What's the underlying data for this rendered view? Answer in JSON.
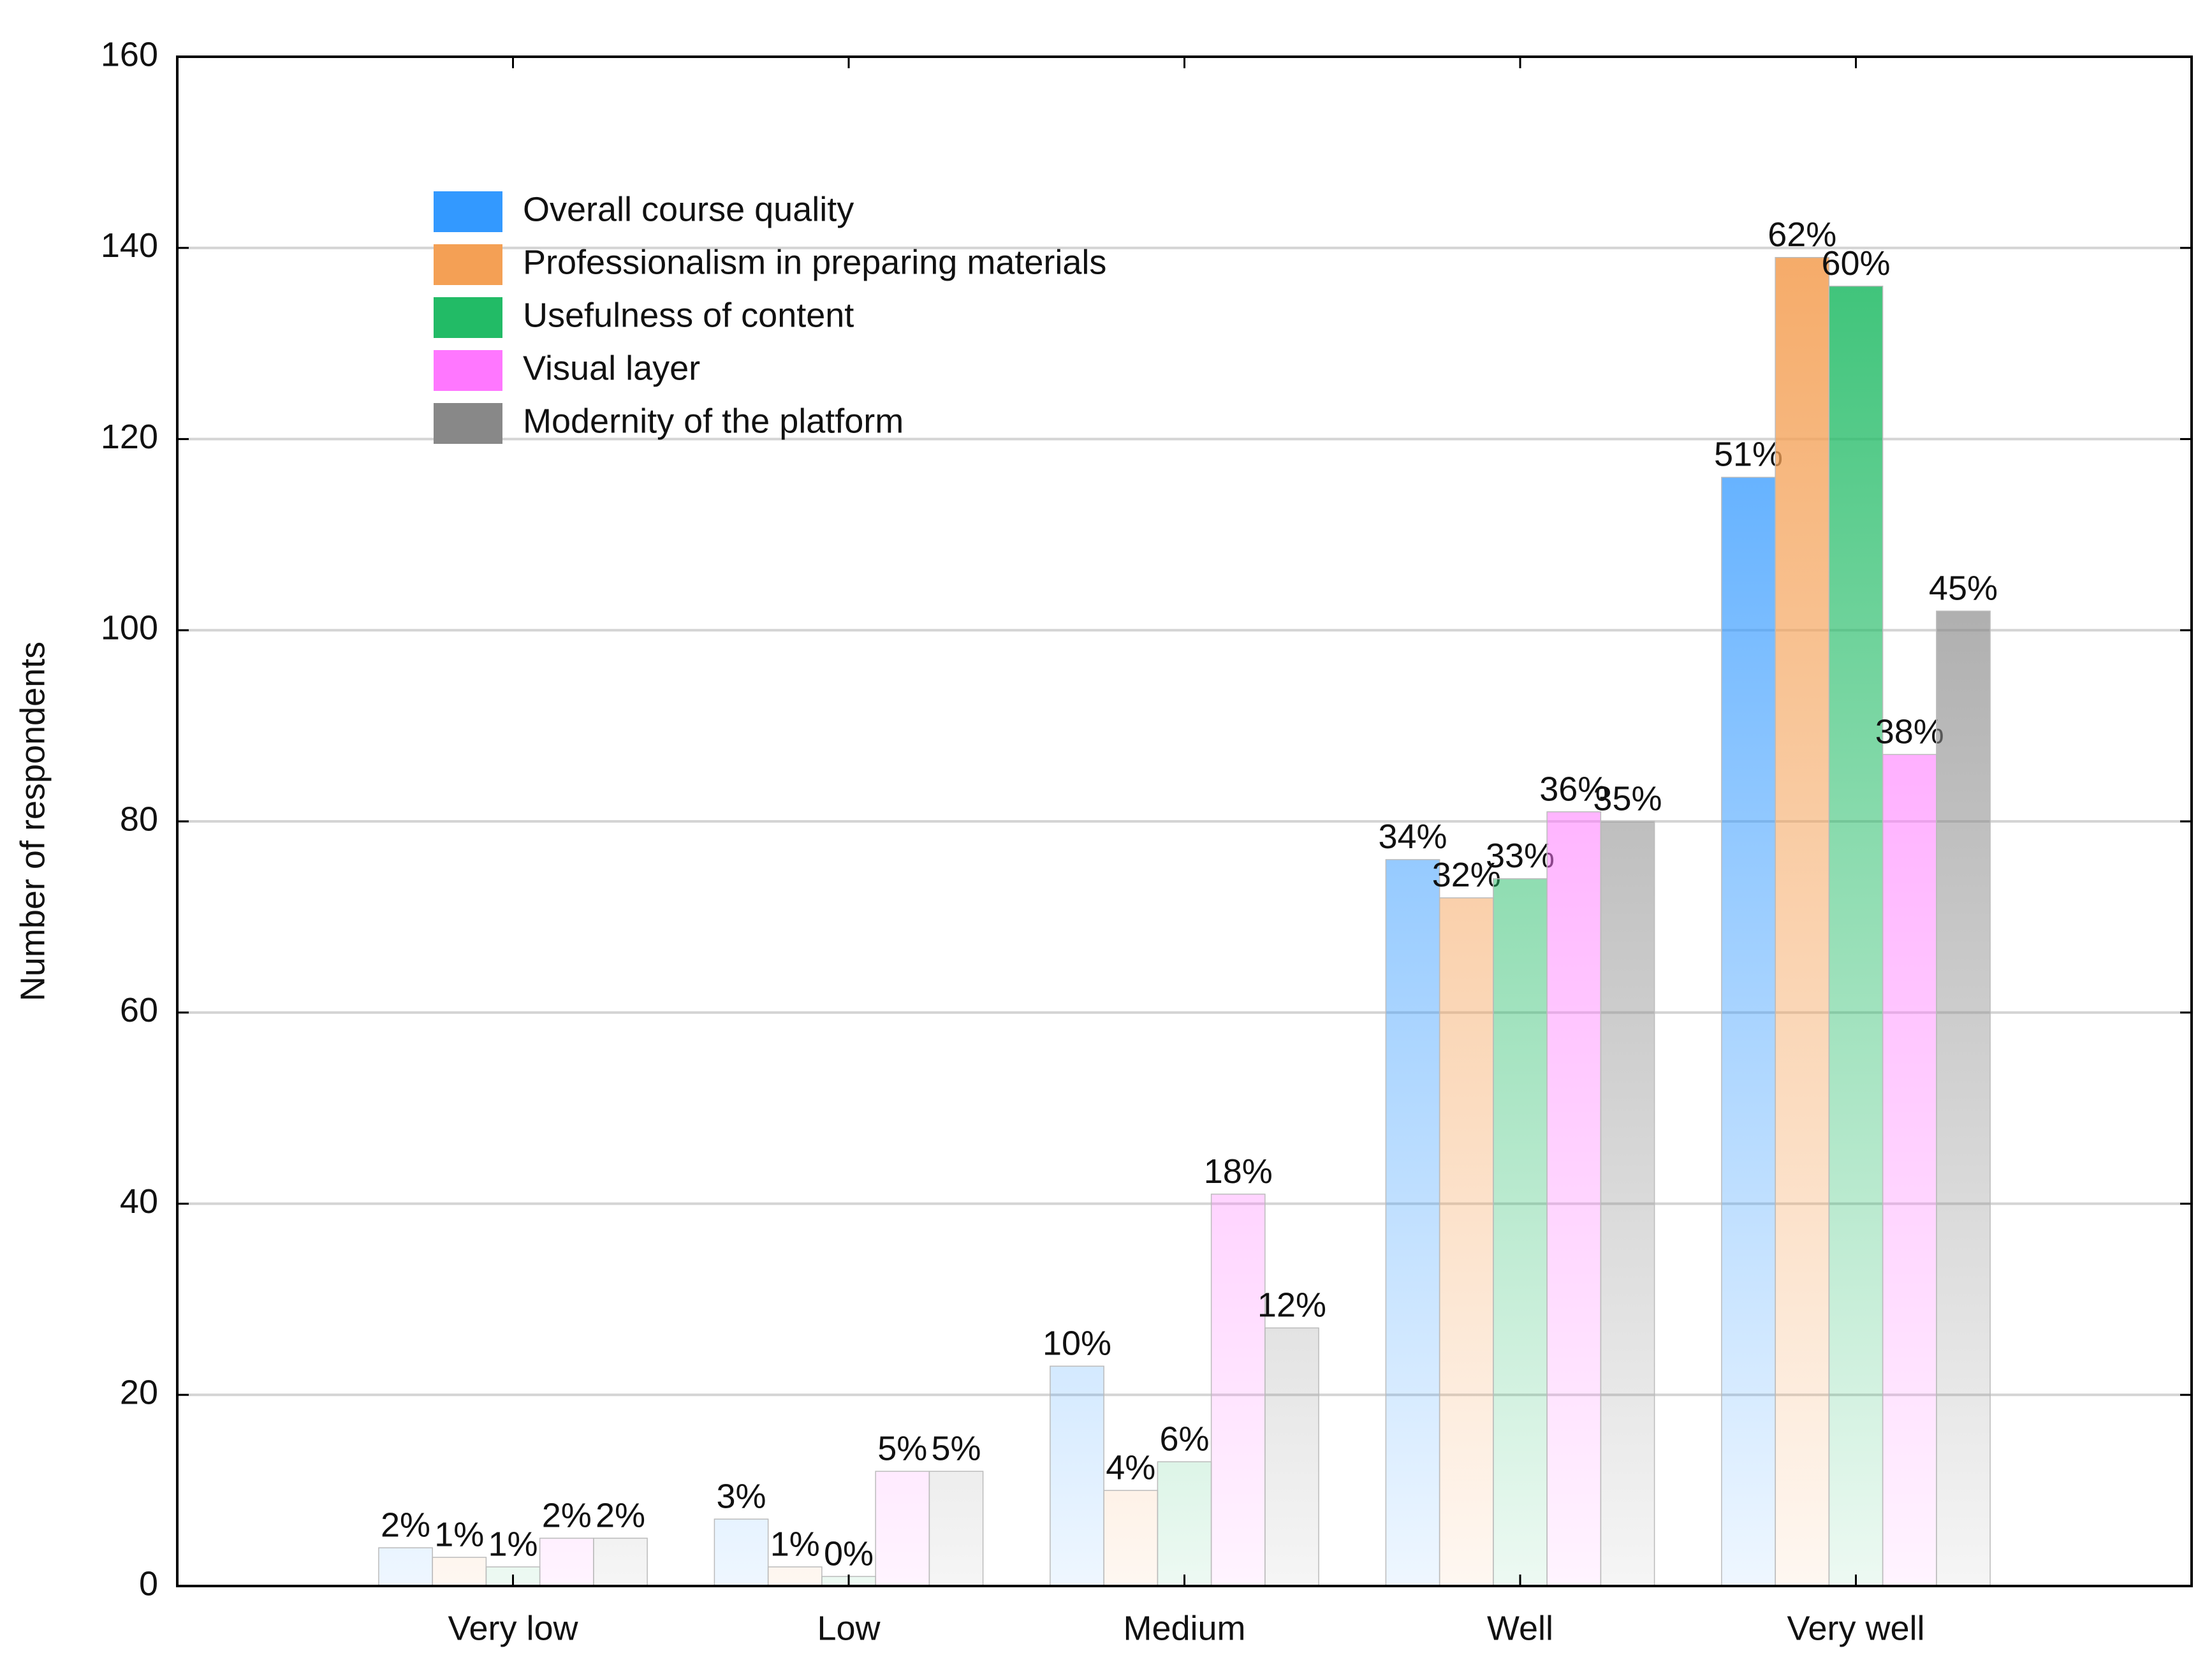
{
  "chart_data": {
    "type": "bar",
    "y_label": "Number of respondents",
    "categories": [
      "Very low",
      "Low",
      "Medium",
      "Well",
      "Very well"
    ],
    "series": [
      {
        "name": "Overall course quality",
        "color": "#3399ff",
        "values": [
          4,
          7,
          23,
          76,
          116
        ],
        "percent_labels": [
          "2%",
          "3%",
          "10%",
          "34%",
          "51%"
        ]
      },
      {
        "name": "Professionalism in preparing materials",
        "color": "#f4a055",
        "values": [
          3,
          2,
          10,
          72,
          139
        ],
        "percent_labels": [
          "1%",
          "1%",
          "4%",
          "32%",
          "62%"
        ]
      },
      {
        "name": "Usefulness of content",
        "color": "#22bb66",
        "values": [
          2,
          1,
          13,
          74,
          136
        ],
        "percent_labels": [
          "1%",
          "0%",
          "6%",
          "33%",
          "60%"
        ]
      },
      {
        "name": "Visual layer",
        "color": "#ff77ff",
        "values": [
          5,
          12,
          41,
          81,
          87
        ],
        "percent_labels": [
          "2%",
          "5%",
          "18%",
          "36%",
          "38%"
        ]
      },
      {
        "name": "Modernity of the platform",
        "color": "#888888",
        "values": [
          5,
          12,
          27,
          80,
          102
        ],
        "percent_labels": [
          "2%",
          "5%",
          "12%",
          "35%",
          "45%"
        ]
      }
    ],
    "ylim": [
      0,
      160
    ],
    "yticks": [
      0,
      20,
      40,
      60,
      80,
      100,
      120,
      140,
      160
    ],
    "grid": true,
    "legend": "upper left"
  }
}
